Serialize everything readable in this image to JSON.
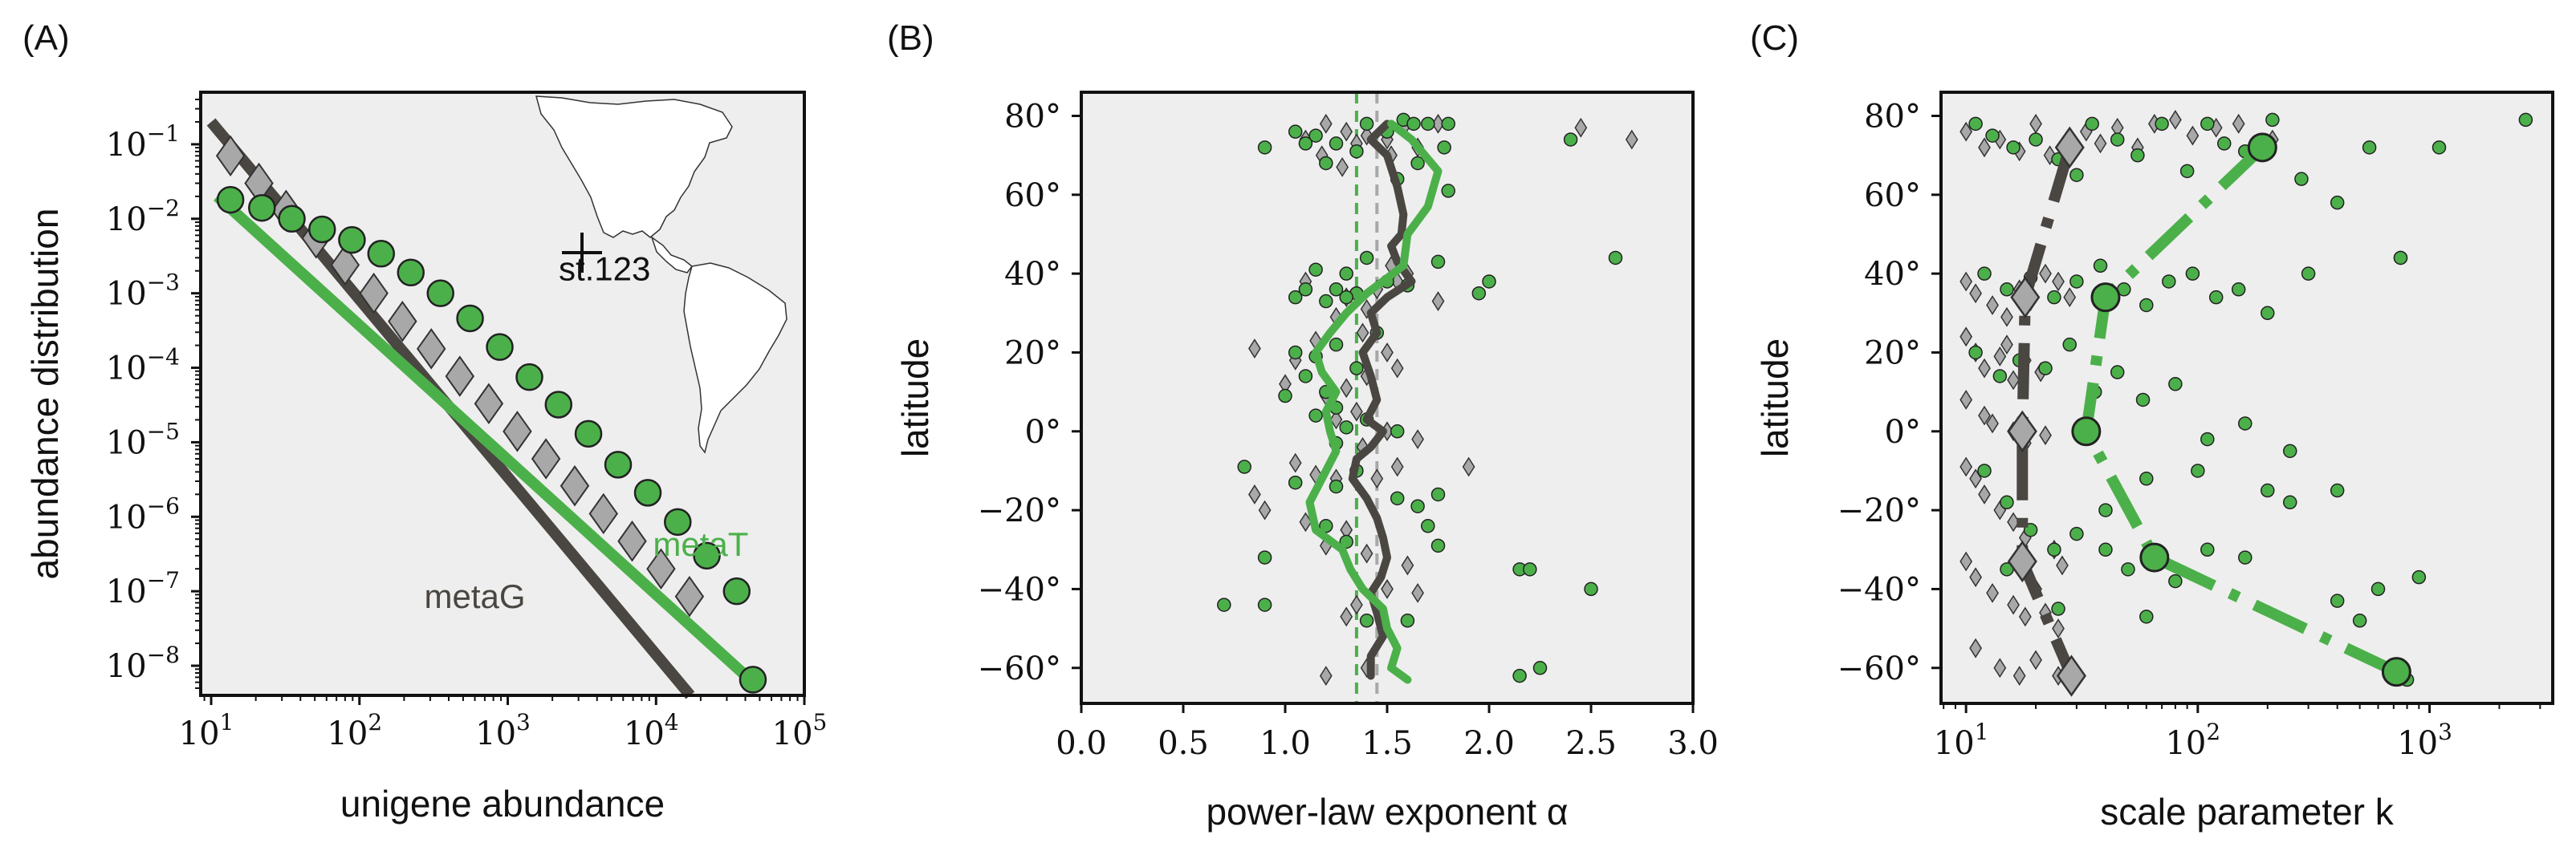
{
  "colors": {
    "metaG": "#4a4641",
    "metaG_marker": "#a8a8a8",
    "metaT": "#4cb04a",
    "plot_bg": "#eeeeee"
  },
  "chart_data": [
    {
      "panel_label": "(A)",
      "type": "scatter",
      "xlabel": "unigene abundance",
      "ylabel": "abundance distribution",
      "xscale": "log",
      "yscale": "log",
      "xlim": [
        8.5,
        100000
      ],
      "ylim": [
        4e-09,
        0.5
      ],
      "xticks": [
        10,
        100,
        1000,
        10000,
        100000
      ],
      "xtick_labels": [
        "10",
        "10",
        "10",
        "10",
        "10"
      ],
      "xtick_exps": [
        "1",
        "2",
        "3",
        "4",
        "5"
      ],
      "yticks": [
        1e-08,
        1e-07,
        1e-06,
        1e-05,
        0.0001,
        0.001,
        0.01,
        0.1
      ],
      "ytick_labels": [
        "10",
        "10",
        "10",
        "10",
        "10",
        "10",
        "10",
        "10"
      ],
      "ytick_exps": [
        "−8",
        "−7",
        "−6",
        "−5",
        "−4",
        "−3",
        "−2",
        "−1"
      ],
      "annotations": [
        {
          "text": "metaT",
          "x": 20000,
          "y": 3e-07,
          "color": "#4cb04a"
        },
        {
          "text": "metaG",
          "x": 600,
          "y": 6e-08,
          "color": "#4a4641"
        },
        {
          "text": "st.123",
          "x": 4500,
          "y": 0.0015,
          "color": "#111111"
        }
      ],
      "inset_map": {
        "marker": "+",
        "station": "st.123"
      },
      "series": [
        {
          "name": "metaG",
          "fit_line": [
            [
              10,
              0.2
            ],
            [
              17000,
              4e-09
            ]
          ],
          "x": [
            13.5,
            21,
            32,
            51,
            80,
            125,
            195,
            305,
            475,
            745,
            1160,
            1810,
            2830,
            4420,
            6900,
            10800,
            16800
          ],
          "y": [
            0.07,
            0.03,
            0.013,
            0.0055,
            0.0024,
            0.001,
            0.00042,
            0.00018,
            7.7e-05,
            3.3e-05,
            1.4e-05,
            6e-06,
            2.6e-06,
            1.1e-06,
            4.7e-07,
            2e-07,
            8.5e-08
          ]
        },
        {
          "name": "metaT",
          "fit_line": [
            [
              11,
              0.02
            ],
            [
              45000,
              6e-09
            ]
          ],
          "x": [
            13.5,
            22,
            35,
            56,
            89,
            140,
            222,
            352,
            557,
            883,
            1400,
            2200,
            3500,
            5550,
            8800,
            14000,
            22000,
            35000,
            45000
          ],
          "y": [
            0.018,
            0.014,
            0.01,
            0.0072,
            0.0052,
            0.0034,
            0.0019,
            0.001,
            0.00046,
            0.00019,
            7.5e-05,
            3.2e-05,
            1.3e-05,
            5e-06,
            2.1e-06,
            8.5e-07,
            3e-07,
            1e-07,
            6.5e-09
          ]
        }
      ]
    },
    {
      "panel_label": "(B)",
      "type": "scatter",
      "xlabel": "power-law exponent α",
      "ylabel": "latitude",
      "xlim": [
        0,
        3
      ],
      "ylim": [
        -69,
        86
      ],
      "xticks": [
        0,
        0.5,
        1.0,
        1.5,
        2.0,
        2.5,
        3.0
      ],
      "xtick_labels": [
        "0.0",
        "0.5",
        "1.0",
        "1.5",
        "2.0",
        "2.5",
        "3.0"
      ],
      "yticks": [
        -60,
        -40,
        -20,
        0,
        20,
        40,
        60,
        80
      ],
      "ytick_labels": [
        "−60°",
        "−40°",
        "−20°",
        "0°",
        "20°",
        "40°",
        "60°",
        "80°"
      ],
      "vlines": [
        {
          "x": 1.35,
          "series": "metaT"
        },
        {
          "x": 1.45,
          "series": "metaG"
        }
      ],
      "series": [
        {
          "name": "metaG",
          "x": [
            1.2,
            1.3,
            1.1,
            1.35,
            1.4,
            1.5,
            1.65,
            1.75,
            1.58,
            1.28,
            1.18,
            1.52,
            2.7,
            2.45,
            1.1,
            1.52,
            1.6,
            1.45,
            1.3,
            1.4,
            1.25,
            1.75,
            1.55,
            0.85,
            1.15,
            1.38,
            1.05,
            1.5,
            1.4,
            1.55,
            1.0,
            1.3,
            1.2,
            1.35,
            1.25,
            1.5,
            1.65,
            1.38,
            1.05,
            1.55,
            1.9,
            1.15,
            1.45,
            1.25,
            0.85,
            0.9,
            1.1,
            1.3,
            1.2,
            1.4,
            1.6,
            1.65,
            1.5,
            1.35,
            1.3,
            1.2,
            1.4
          ],
          "y": [
            78,
            76,
            74,
            73,
            75,
            74,
            72,
            78,
            77,
            67,
            70,
            70,
            74,
            77,
            38,
            42,
            40,
            36,
            34,
            31,
            29,
            33,
            38,
            21,
            23,
            25,
            18,
            20,
            14,
            16,
            12,
            11,
            9,
            5,
            3,
            0,
            -2,
            -4,
            -8,
            -9,
            -9,
            -11,
            -12,
            -12,
            -16,
            -20,
            -23,
            -25,
            -29,
            -31,
            -34,
            -41,
            -40,
            -44,
            -47,
            -62,
            -60
          ],
          "running_mean": [
            [
              1.5,
              78
            ],
            [
              1.42,
              74
            ],
            [
              1.5,
              70
            ],
            [
              1.55,
              62
            ],
            [
              1.58,
              55
            ],
            [
              1.57,
              50
            ],
            [
              1.52,
              47
            ],
            [
              1.55,
              43
            ],
            [
              1.62,
              38
            ],
            [
              1.5,
              34
            ],
            [
              1.42,
              30
            ],
            [
              1.45,
              25
            ],
            [
              1.38,
              20
            ],
            [
              1.42,
              14
            ],
            [
              1.45,
              8
            ],
            [
              1.4,
              3
            ],
            [
              1.48,
              0
            ],
            [
              1.42,
              -4
            ],
            [
              1.35,
              -7
            ],
            [
              1.33,
              -12
            ],
            [
              1.4,
              -17
            ],
            [
              1.45,
              -22
            ],
            [
              1.48,
              -27
            ],
            [
              1.5,
              -32
            ],
            [
              1.47,
              -37
            ],
            [
              1.42,
              -41
            ],
            [
              1.45,
              -46
            ],
            [
              1.48,
              -52
            ],
            [
              1.42,
              -57
            ],
            [
              1.42,
              -62
            ]
          ]
        },
        {
          "name": "metaT",
          "x": [
            0.9,
            1.05,
            1.15,
            1.25,
            1.4,
            1.5,
            1.58,
            1.63,
            1.7,
            1.78,
            1.35,
            1.2,
            1.1,
            1.55,
            1.65,
            1.8,
            2.4,
            1.8,
            1.15,
            1.3,
            1.4,
            1.25,
            1.6,
            1.35,
            1.5,
            1.05,
            1.2,
            1.1,
            1.3,
            1.95,
            2.0,
            2.62,
            1.75,
            1.45,
            1.25,
            1.05,
            1.15,
            1.35,
            1.1,
            1.2,
            1.0,
            1.25,
            1.15,
            1.4,
            1.3,
            1.55,
            1.25,
            0.8,
            1.35,
            1.05,
            1.25,
            1.75,
            1.55,
            1.65,
            1.7,
            1.2,
            1.3,
            1.75,
            0.9,
            2.15,
            2.2,
            2.5,
            0.7,
            0.9,
            1.4,
            1.6,
            2.15,
            2.25
          ],
          "y": [
            72,
            76,
            75,
            73,
            78,
            76,
            79,
            78,
            78,
            72,
            71,
            68,
            73,
            64,
            68,
            61,
            74,
            78,
            41,
            40,
            44,
            36,
            37,
            35,
            38,
            34,
            33,
            36,
            34,
            35,
            38,
            44,
            43,
            25,
            22,
            20,
            19,
            16,
            14,
            10,
            9,
            6,
            4,
            3,
            1,
            0,
            -3,
            -9,
            -10,
            -13,
            -14,
            -16,
            -17,
            -19,
            -24,
            -24,
            -28,
            -29,
            -32,
            -35,
            -35,
            -40,
            -44,
            -44,
            -48,
            -48,
            -62,
            -60
          ],
          "running_mean": [
            [
              1.52,
              78
            ],
            [
              1.62,
              74
            ],
            [
              1.75,
              66
            ],
            [
              1.7,
              57
            ],
            [
              1.6,
              50
            ],
            [
              1.58,
              42
            ],
            [
              1.4,
              35
            ],
            [
              1.3,
              30
            ],
            [
              1.22,
              25
            ],
            [
              1.15,
              20
            ],
            [
              1.18,
              15
            ],
            [
              1.25,
              10
            ],
            [
              1.2,
              5
            ],
            [
              1.22,
              0
            ],
            [
              1.25,
              -5
            ],
            [
              1.18,
              -12
            ],
            [
              1.12,
              -18
            ],
            [
              1.15,
              -25
            ],
            [
              1.28,
              -30
            ],
            [
              1.32,
              -35
            ],
            [
              1.38,
              -40
            ],
            [
              1.48,
              -45
            ],
            [
              1.5,
              -50
            ],
            [
              1.55,
              -55
            ],
            [
              1.52,
              -60
            ],
            [
              1.6,
              -63
            ]
          ]
        }
      ]
    },
    {
      "panel_label": "(C)",
      "type": "scatter",
      "xlabel": "scale parameter k",
      "ylabel": "latitude",
      "xscale": "log",
      "xlim": [
        7.8,
        3400
      ],
      "ylim": [
        -69,
        86
      ],
      "xticks": [
        10,
        100,
        1000
      ],
      "xtick_labels": [
        "10",
        "10",
        "10"
      ],
      "xtick_exps": [
        "1",
        "2",
        "3"
      ],
      "yticks": [
        -60,
        -40,
        -20,
        0,
        20,
        40,
        60,
        80
      ],
      "ytick_labels": [
        "−60°",
        "−40°",
        "−20°",
        "0°",
        "20°",
        "40°",
        "60°",
        "80°"
      ],
      "series": [
        {
          "name": "metaG",
          "x": [
            10,
            12,
            14,
            17,
            20,
            23,
            28,
            33,
            38,
            45,
            55,
            65,
            80,
            95,
            120,
            150,
            180,
            210,
            10,
            11,
            13,
            15,
            17,
            19,
            22,
            25,
            28,
            10,
            11,
            12,
            14,
            15,
            16,
            18,
            21,
            10,
            12,
            13,
            16,
            18,
            22,
            10,
            11,
            12,
            14,
            16,
            18,
            24,
            26,
            10,
            11,
            13,
            16,
            18,
            20,
            22,
            25,
            11,
            14,
            17,
            20,
            25
          ],
          "y": [
            76,
            72,
            74,
            71,
            78,
            70,
            74,
            76,
            73,
            77,
            72,
            78,
            79,
            75,
            77,
            78,
            73,
            74,
            38,
            35,
            32,
            29,
            36,
            33,
            40,
            38,
            34,
            24,
            20,
            16,
            19,
            22,
            13,
            18,
            15,
            8,
            4,
            2,
            0,
            -3,
            -1,
            -9,
            -12,
            -16,
            -20,
            -23,
            -27,
            -30,
            -34,
            -33,
            -37,
            -41,
            -44,
            -47,
            -40,
            -46,
            -50,
            -55,
            -60,
            -62,
            -58,
            -62
          ],
          "medians": [
            [
              18,
              34
            ],
            [
              28,
              72
            ],
            [
              17.5,
              0
            ],
            [
              17.5,
              -33
            ],
            [
              28.5,
              -62
            ]
          ]
        },
        {
          "name": "metaT",
          "x": [
            11,
            13,
            16,
            20,
            25,
            30,
            35,
            45,
            55,
            70,
            90,
            110,
            130,
            160,
            210,
            280,
            400,
            550,
            750,
            1100,
            2600,
            12,
            15,
            19,
            24,
            30,
            38,
            48,
            60,
            75,
            95,
            120,
            150,
            200,
            300,
            750,
            11,
            14,
            17,
            22,
            28,
            36,
            45,
            58,
            80,
            110,
            160,
            250,
            400,
            12,
            15,
            19,
            24,
            30,
            40,
            50,
            60,
            80,
            110,
            160,
            250,
            400,
            600,
            900,
            15,
            25,
            40,
            60,
            100,
            200,
            500,
            800
          ],
          "y": [
            78,
            75,
            72,
            74,
            69,
            65,
            78,
            74,
            70,
            78,
            66,
            78,
            73,
            71,
            79,
            64,
            58,
            72,
            44,
            72,
            79,
            40,
            36,
            39,
            34,
            38,
            42,
            36,
            32,
            38,
            40,
            34,
            36,
            30,
            40,
            44,
            20,
            14,
            18,
            16,
            22,
            10,
            15,
            8,
            12,
            -2,
            2,
            -5,
            -15,
            -10,
            -18,
            -25,
            -30,
            -26,
            -30,
            -35,
            -47,
            -38,
            -30,
            -32,
            -18,
            -43,
            -40,
            -37,
            -35,
            -45,
            -20,
            -12,
            -10,
            -15,
            -48,
            -63
          ],
          "medians": [
            [
              190,
              72
            ],
            [
              40,
              34
            ],
            [
              33,
              0
            ],
            [
              65,
              -32
            ],
            [
              720,
              -61
            ]
          ]
        }
      ]
    }
  ]
}
